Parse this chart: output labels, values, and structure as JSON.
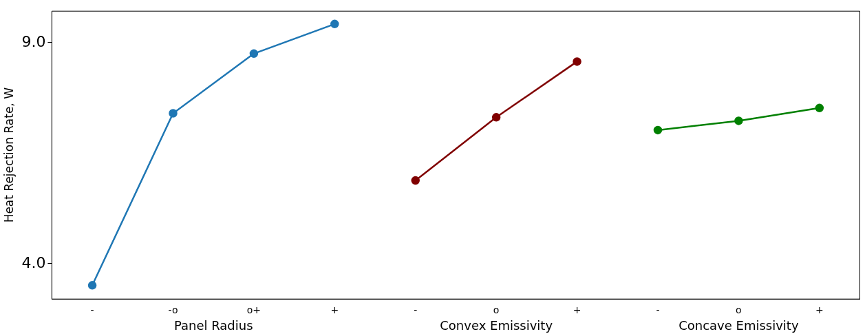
{
  "chart_data": {
    "type": "line",
    "ylabel": "Heat Rejection Rate, W",
    "marker": "circle",
    "line_style": "solid",
    "grid": false,
    "legend": false,
    "ylim": [
      3.2,
      9.71
    ],
    "yticks": [
      {
        "value": 4,
        "label": "4.0"
      },
      {
        "value": 9,
        "label": "9.0"
      }
    ],
    "categories": [
      "-",
      "-o",
      "o+",
      "+",
      "-",
      "o",
      "+",
      "-",
      "o",
      "+"
    ],
    "series": [
      {
        "color": "#1f77b4",
        "values": [
          3.51,
          7.4,
          8.75,
          9.42,
          null,
          null,
          null,
          null,
          null,
          null
        ]
      },
      {
        "color": "#800000",
        "values": [
          null,
          null,
          null,
          null,
          5.88,
          7.31,
          8.57,
          null,
          null,
          null
        ]
      },
      {
        "color": "#008000",
        "values": [
          null,
          null,
          null,
          null,
          null,
          null,
          null,
          7.02,
          7.23,
          7.52
        ]
      }
    ],
    "annotations": [
      "Panel Radius",
      "Convex Emissivity",
      "Concave Emissivity"
    ]
  }
}
